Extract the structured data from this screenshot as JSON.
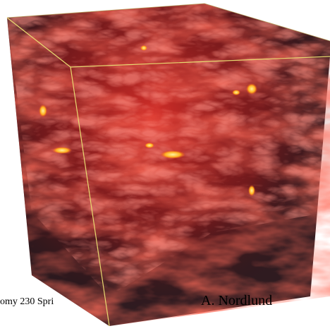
{
  "footer": {
    "course": "omy 230 Spri",
    "author": "A. Nordlund"
  }
}
